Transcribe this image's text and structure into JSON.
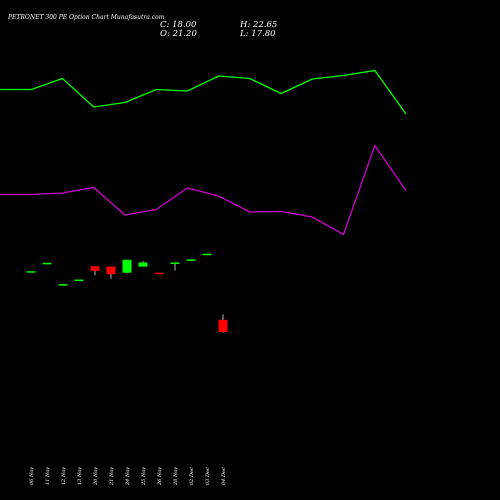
{
  "chart_data": {
    "type": "candlestick",
    "title": "PETRONET 300  PE Option Chart Munafasutra.com",
    "ohlc": {
      "close": "C: 18.00",
      "open": "O: 21.20",
      "high": "H: 22.65",
      "low": "L: 17.80"
    },
    "categories": [
      "06 Nov",
      "11 Nov",
      "12 Nov",
      "13 Nov",
      "20 Nov",
      "21 Nov",
      "24 Nov",
      "25 Nov",
      "26 Nov",
      "28 Nov",
      "02 Dec",
      "03 Dec",
      "04 Dec"
    ],
    "candles": [
      {
        "o": 34.0,
        "h": 34.0,
        "l": 34.0,
        "c": 34.0
      },
      {
        "o": 36.2,
        "h": 36.2,
        "l": 36.2,
        "c": 36.2
      },
      {
        "o": 30.6,
        "h": 30.6,
        "l": 30.3,
        "c": 30.6
      },
      {
        "o": 31.8,
        "h": 31.8,
        "l": 31.8,
        "c": 31.8
      },
      {
        "o": 35.3,
        "h": 35.3,
        "l": 32.9,
        "c": 34.1
      },
      {
        "o": 35.2,
        "h": 35.2,
        "l": 32.0,
        "c": 33.2
      },
      {
        "o": 33.6,
        "h": 37.0,
        "l": 33.6,
        "c": 37.0
      },
      {
        "o": 35.2,
        "h": 36.7,
        "l": 35.2,
        "c": 36.3
      },
      {
        "o": 33.6,
        "h": 33.6,
        "l": 33.3,
        "c": 33.3
      },
      {
        "o": 36.1,
        "h": 36.3,
        "l": 34.2,
        "c": 36.3
      },
      {
        "o": 37.1,
        "h": 37.1,
        "l": 37.1,
        "c": 37.1
      },
      {
        "o": 38.6,
        "h": 38.6,
        "l": 38.6,
        "c": 38.6
      },
      {
        "o": 21.2,
        "h": 22.65,
        "l": 17.8,
        "c": 18.0
      }
    ],
    "green_line": [
      89.5,
      89.5,
      78.5,
      107.0,
      102.5,
      89.5,
      91.0,
      76.0,
      78.5,
      93.5,
      79.0,
      75.5,
      70.5,
      114.0
    ],
    "magenta_line": [
      194.5,
      194.5,
      193.0,
      187.5,
      215.0,
      209.5,
      188.0,
      196.0,
      212.0,
      211.5,
      217.0,
      234.5,
      145.5,
      190.5
    ],
    "colors": {
      "up": "#00ff00",
      "down": "#ff0000",
      "line1": "#00ff00",
      "line2": "#cc00cc",
      "background": "#000000"
    }
  }
}
